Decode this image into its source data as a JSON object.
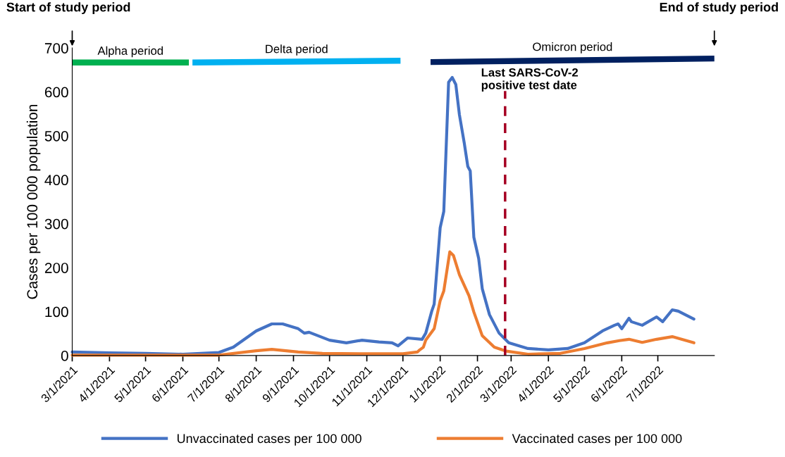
{
  "chart_data": {
    "type": "line",
    "ylabel": "Cases per 100 000 population",
    "xlim": [
      "2021-03-01",
      "2022-08-17"
    ],
    "xticks": [
      {
        "value": "2021-03-01",
        "label": "3/1/2021"
      },
      {
        "value": "2021-04-01",
        "label": "4/1/2021"
      },
      {
        "value": "2021-05-01",
        "label": "5/1/2021"
      },
      {
        "value": "2021-06-01",
        "label": "6/1/2021"
      },
      {
        "value": "2021-07-01",
        "label": "7/1/2021"
      },
      {
        "value": "2021-08-01",
        "label": "8/1/2021"
      },
      {
        "value": "2021-09-01",
        "label": "9/1/2021"
      },
      {
        "value": "2021-10-01",
        "label": "10/1/2021"
      },
      {
        "value": "2021-11-01",
        "label": "11/1/2021"
      },
      {
        "value": "2021-12-01",
        "label": "12/1/2021"
      },
      {
        "value": "2022-01-01",
        "label": "1/1/2022"
      },
      {
        "value": "2022-02-01",
        "label": "2/1/2022"
      },
      {
        "value": "2022-03-01",
        "label": "3/1/2022"
      },
      {
        "value": "2022-04-01",
        "label": "4/1/2022"
      },
      {
        "value": "2022-05-01",
        "label": "5/1/2022"
      },
      {
        "value": "2022-06-01",
        "label": "6/1/2022"
      },
      {
        "value": "2022-07-01",
        "label": "7/1/2022"
      }
    ],
    "ylim": [
      0,
      700
    ],
    "yticks": [
      0,
      100,
      200,
      300,
      400,
      500,
      600,
      700
    ],
    "grid": false,
    "legend": "bottom",
    "marker": "none",
    "line_style": "solid",
    "series": [
      {
        "name": "Unvaccinated cases per 100 000",
        "color": "#4472c4",
        "x": [
          "2021-03-01",
          "2021-04-01",
          "2021-05-01",
          "2021-06-01",
          "2021-07-01",
          "2021-07-13",
          "2021-08-01",
          "2021-08-14",
          "2021-08-23",
          "2021-09-05",
          "2021-09-10",
          "2021-09-14",
          "2021-10-01",
          "2021-10-15",
          "2021-10-28",
          "2021-11-11",
          "2021-11-22",
          "2021-11-27",
          "2021-12-05",
          "2021-12-17",
          "2021-12-20",
          "2021-12-25",
          "2021-12-27",
          "2022-01-01",
          "2022-01-04",
          "2022-01-08",
          "2022-01-11",
          "2022-01-14",
          "2022-01-17",
          "2022-01-21",
          "2022-01-24",
          "2022-01-26",
          "2022-01-29",
          "2022-02-02",
          "2022-02-05",
          "2022-02-11",
          "2022-02-19",
          "2022-02-27",
          "2022-03-15",
          "2022-04-01",
          "2022-04-17",
          "2022-05-01",
          "2022-05-16",
          "2022-05-26",
          "2022-05-29",
          "2022-06-01",
          "2022-06-07",
          "2022-06-09",
          "2022-06-18",
          "2022-06-30",
          "2022-07-05",
          "2022-07-13",
          "2022-07-18",
          "2022-07-31"
        ],
        "values": [
          8,
          6,
          5,
          3,
          7,
          19,
          56,
          72,
          72,
          61,
          51,
          53,
          35,
          29,
          35,
          31,
          29,
          22,
          40,
          37,
          51,
          101,
          117,
          291,
          328,
          622,
          633,
          617,
          548,
          484,
          430,
          420,
          269,
          221,
          152,
          93,
          51,
          29,
          16,
          13,
          16,
          29,
          56,
          69,
          72,
          61,
          85,
          77,
          69,
          88,
          77,
          104,
          101,
          83
        ]
      },
      {
        "name": "Vaccinated cases per 100 000",
        "color": "#ed7d31",
        "x": [
          "2021-03-01",
          "2021-06-01",
          "2021-07-01",
          "2021-08-01",
          "2021-08-14",
          "2021-09-05",
          "2021-09-25",
          "2021-11-01",
          "2021-12-01",
          "2021-12-13",
          "2021-12-15",
          "2021-12-18",
          "2021-12-20",
          "2021-12-27",
          "2022-01-01",
          "2022-01-04",
          "2022-01-09",
          "2022-01-12",
          "2022-01-17",
          "2022-01-25",
          "2022-01-29",
          "2022-02-05",
          "2022-02-15",
          "2022-02-25",
          "2022-03-15",
          "2022-04-11",
          "2022-05-01",
          "2022-05-20",
          "2022-05-30",
          "2022-06-07",
          "2022-06-18",
          "2022-06-30",
          "2022-07-13",
          "2022-07-31"
        ],
        "values": [
          1,
          1,
          1,
          11,
          14,
          8,
          5,
          4,
          4,
          8,
          13,
          19,
          35,
          61,
          125,
          147,
          236,
          228,
          184,
          136,
          99,
          45,
          19,
          10,
          3,
          5,
          16,
          29,
          34,
          37,
          30,
          37,
          43,
          29
        ]
      },
      {
        "name": "Alpha period",
        "color": "#00b050",
        "x": [
          "2021-03-01",
          "2021-06-06"
        ],
        "values": [
          667,
          667
        ]
      },
      {
        "name": "Delta period",
        "color": "#00b0f0",
        "x": [
          "2021-06-09",
          "2021-11-29"
        ],
        "values": [
          667,
          671
        ]
      },
      {
        "name": "Omicron period",
        "color": "#002060",
        "x": [
          "2021-12-24",
          "2022-08-17"
        ],
        "values": [
          668,
          676
        ]
      }
    ],
    "ref_lines": [
      {
        "axis": "x",
        "value": "2022-02-24",
        "label": "Last SARS-CoV-2\npositive test date",
        "color": "#a50021",
        "line_style": "dashed"
      }
    ],
    "annotations": [
      "Start of study period",
      "End of study period"
    ]
  }
}
